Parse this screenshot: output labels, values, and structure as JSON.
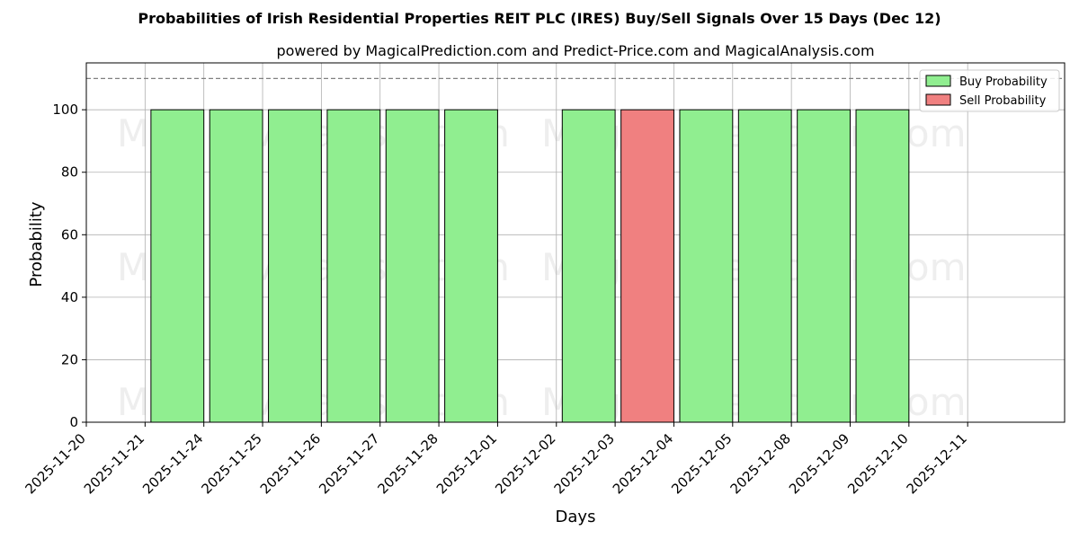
{
  "chart_data": {
    "type": "bar",
    "title": "Probabilities of Irish Residential Properties REIT PLC (IRES) Buy/Sell Signals Over 15 Days (Dec 12)",
    "subtitle": "powered by MagicalPrediction.com and Predict-Price.com and MagicalAnalysis.com",
    "xlabel": "Days",
    "ylabel": "Probability",
    "ylim": [
      0,
      115
    ],
    "yticks": [
      0,
      20,
      40,
      60,
      80,
      100
    ],
    "reference_line": 110,
    "grid": true,
    "legend_position": "top-right",
    "categories": [
      "2025-11-20",
      "2025-11-21",
      "2025-11-24",
      "2025-11-25",
      "2025-11-26",
      "2025-11-27",
      "2025-11-28",
      "2025-12-01",
      "2025-12-02",
      "2025-12-03",
      "2025-12-04",
      "2025-12-05",
      "2025-12-08",
      "2025-12-09",
      "2025-12-10",
      "2025-12-11"
    ],
    "series": [
      {
        "name": "Buy Probability",
        "color": "#90ee90",
        "values": [
          null,
          null,
          100,
          100,
          100,
          100,
          100,
          100,
          null,
          100,
          null,
          100,
          100,
          100,
          100,
          null
        ]
      },
      {
        "name": "Sell Probability",
        "color": "#f08080",
        "values": [
          null,
          null,
          null,
          null,
          null,
          null,
          null,
          null,
          null,
          null,
          100,
          null,
          null,
          null,
          null,
          null
        ]
      }
    ],
    "watermarks": [
      "MagicalAnalysis.com",
      "MagicalPrediction.com",
      "MagicalAnalysis.com",
      "MagicalPrediction.com",
      "MagicalAnalysis.com",
      "MagicalPrediction.com"
    ]
  }
}
